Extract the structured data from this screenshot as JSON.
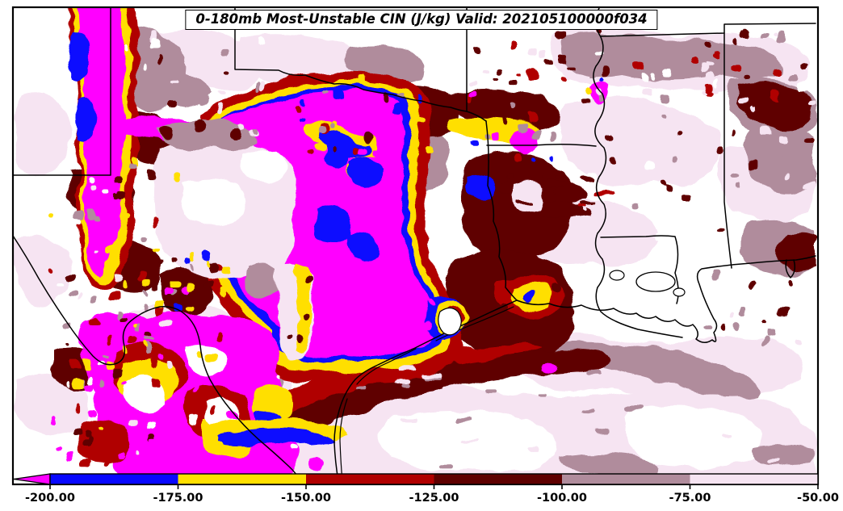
{
  "chart_data": {
    "type": "heatmap",
    "title": "0-180mb Most-Unstable CIN (J/kg) Valid: 202105100000f034",
    "variable": "0-180mb Most-Unstable CIN",
    "units": "J/kg",
    "valid_time": "202105100000f034",
    "colorbar": {
      "orientation": "horizontal",
      "position": "bottom",
      "extend_left_arrow": true,
      "levels": [
        -200,
        -175,
        -150,
        -125,
        -100,
        -75,
        -50
      ],
      "tick_labels": [
        "-200.00",
        "-175.00",
        "-150.00",
        "-125.00",
        "-100.00",
        "-75.00",
        "-50.00"
      ],
      "bins": [
        {
          "range": "< -200",
          "color_name": "magenta",
          "color": "#FF00FF"
        },
        {
          "range": "-200 to -175",
          "color_name": "blue",
          "color": "#0808FF"
        },
        {
          "range": "-175 to -150",
          "color_name": "yellow",
          "color": "#FFDF00"
        },
        {
          "range": "-150 to -125",
          "color_name": "red",
          "color": "#B00000"
        },
        {
          "range": "-125 to -100",
          "color_name": "maroon",
          "color": "#5E0000"
        },
        {
          "range": "-100 to -75",
          "color_name": "mauve",
          "color": "#B08C9C"
        },
        {
          "range": "-75 to -50",
          "color_name": "palepink",
          "color": "#F6E4F2"
        }
      ]
    },
    "summary": "Strongest CIN (< -200 J/kg, magenta) covers central and southern Texas and a band along the New Mexico border, ringed by blue, yellow, bright red and dark maroon contours; CIN weakens toward Louisiana and Mississippi where values are mostly weaker than -75 J/kg (pale pink/white)."
  },
  "palette": {
    "white": "#FFFFFF",
    "palepink": "#F6E4F2",
    "mauve": "#B08C9C",
    "maroon": "#5E0000",
    "red": "#B00000",
    "yellow": "#FFDF00",
    "blue": "#0808FF",
    "magenta": "#FF00FF",
    "frame": "#000000"
  }
}
